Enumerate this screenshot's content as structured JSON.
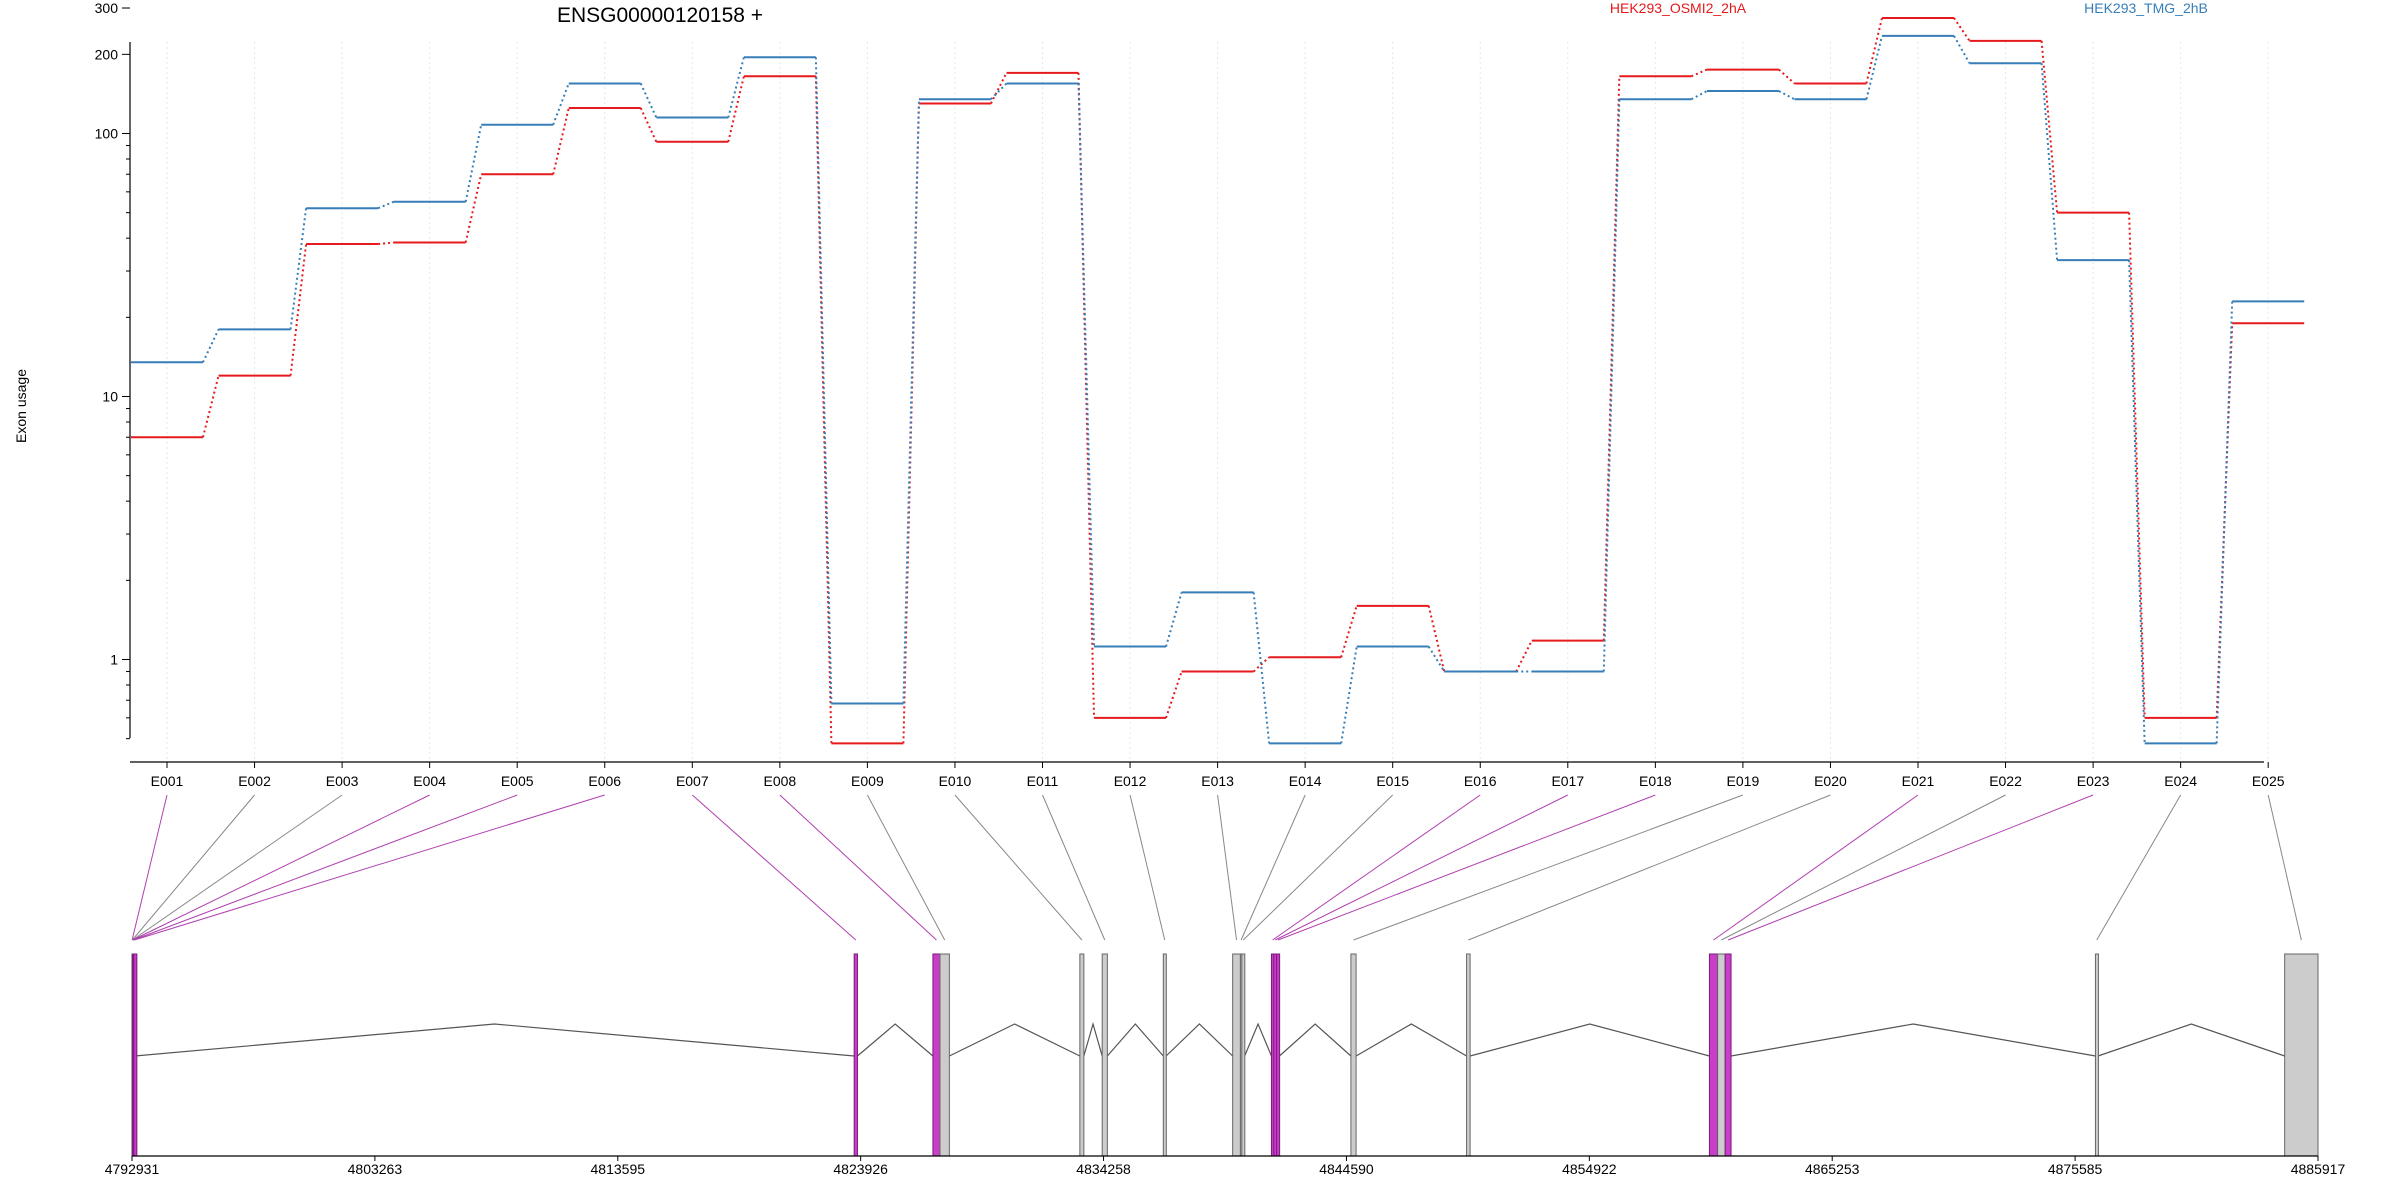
{
  "chart_data": {
    "type": "line",
    "title": "ENSG00000120158 +",
    "ylabel": "Exon usage",
    "y_scale": "log",
    "ylim": [
      0.5,
      330
    ],
    "yticks": [
      1,
      10,
      100,
      200,
      300
    ],
    "exon_ids": [
      "E001",
      "E002",
      "E003",
      "E004",
      "E005",
      "E006",
      "E007",
      "E008",
      "E009",
      "E010",
      "E011",
      "E012",
      "E013",
      "E014",
      "E015",
      "E016",
      "E017",
      "E018",
      "E019",
      "E020",
      "E021",
      "E022",
      "E023",
      "E024",
      "E025"
    ],
    "series": [
      {
        "name": "HEK293_OSMI2_2hA",
        "color": "#e41a1c",
        "values": [
          7,
          12,
          38,
          38.5,
          70,
          125,
          93,
          165,
          0.48,
          130,
          170,
          0.6,
          0.9,
          1.02,
          1.6,
          0.9,
          1.18,
          165,
          175,
          155,
          275,
          225,
          50,
          0.6,
          19
        ]
      },
      {
        "name": "HEK293_TMG_2hB",
        "color": "#377eb8",
        "values": [
          13.5,
          18,
          52,
          55,
          108,
          155,
          115,
          195,
          0.68,
          135,
          155,
          1.12,
          1.8,
          0.48,
          1.12,
          0.9,
          0.9,
          135,
          145,
          135,
          235,
          185,
          33,
          0.48,
          23
        ]
      }
    ],
    "gene_model": {
      "coordinate_ticks": [
        "4792931",
        "4803263",
        "4813595",
        "4823926",
        "4834258",
        "4844590",
        "4854922",
        "4865253",
        "4875585",
        "4885917"
      ],
      "exons": [
        {
          "id": "E001",
          "start": 4792931,
          "end": 4792940,
          "highlight": true
        },
        {
          "id": "E002",
          "start": 4792940,
          "end": 4792948,
          "highlight": false
        },
        {
          "id": "E003",
          "start": 4792948,
          "end": 4792956,
          "highlight": false
        },
        {
          "id": "E004",
          "start": 4792956,
          "end": 4792965,
          "highlight": true
        },
        {
          "id": "E005",
          "start": 4792965,
          "end": 4793010,
          "highlight": true
        },
        {
          "id": "E006",
          "start": 4793010,
          "end": 4793050,
          "highlight": true
        },
        {
          "id": "E007",
          "start": 4823650,
          "end": 4823790,
          "highlight": true
        },
        {
          "id": "E008",
          "start": 4827000,
          "end": 4827300,
          "highlight": true
        },
        {
          "id": "E009",
          "start": 4827300,
          "end": 4827700,
          "highlight": false
        },
        {
          "id": "E010",
          "start": 4833250,
          "end": 4833420,
          "highlight": false
        },
        {
          "id": "E011",
          "start": 4834200,
          "end": 4834420,
          "highlight": false
        },
        {
          "id": "E012",
          "start": 4836800,
          "end": 4836920,
          "highlight": false
        },
        {
          "id": "E013",
          "start": 4839750,
          "end": 4840080,
          "highlight": false
        },
        {
          "id": "E014",
          "start": 4840080,
          "end": 4840140,
          "highlight": false
        },
        {
          "id": "E015",
          "start": 4840140,
          "end": 4840260,
          "highlight": false
        },
        {
          "id": "E016",
          "start": 4841400,
          "end": 4841500,
          "highlight": true
        },
        {
          "id": "E017",
          "start": 4841500,
          "end": 4841620,
          "highlight": true
        },
        {
          "id": "E018",
          "start": 4841620,
          "end": 4841740,
          "highlight": true
        },
        {
          "id": "E019",
          "start": 4844780,
          "end": 4845000,
          "highlight": false
        },
        {
          "id": "E020",
          "start": 4849700,
          "end": 4849850,
          "highlight": false
        },
        {
          "id": "E021",
          "start": 4860030,
          "end": 4860380,
          "highlight": true
        },
        {
          "id": "E022",
          "start": 4860380,
          "end": 4860700,
          "highlight": false
        },
        {
          "id": "E023",
          "start": 4860700,
          "end": 4860950,
          "highlight": true
        },
        {
          "id": "E024",
          "start": 4876450,
          "end": 4876560,
          "highlight": false
        },
        {
          "id": "E025",
          "start": 4884500,
          "end": 4885917,
          "highlight": false
        }
      ]
    }
  }
}
